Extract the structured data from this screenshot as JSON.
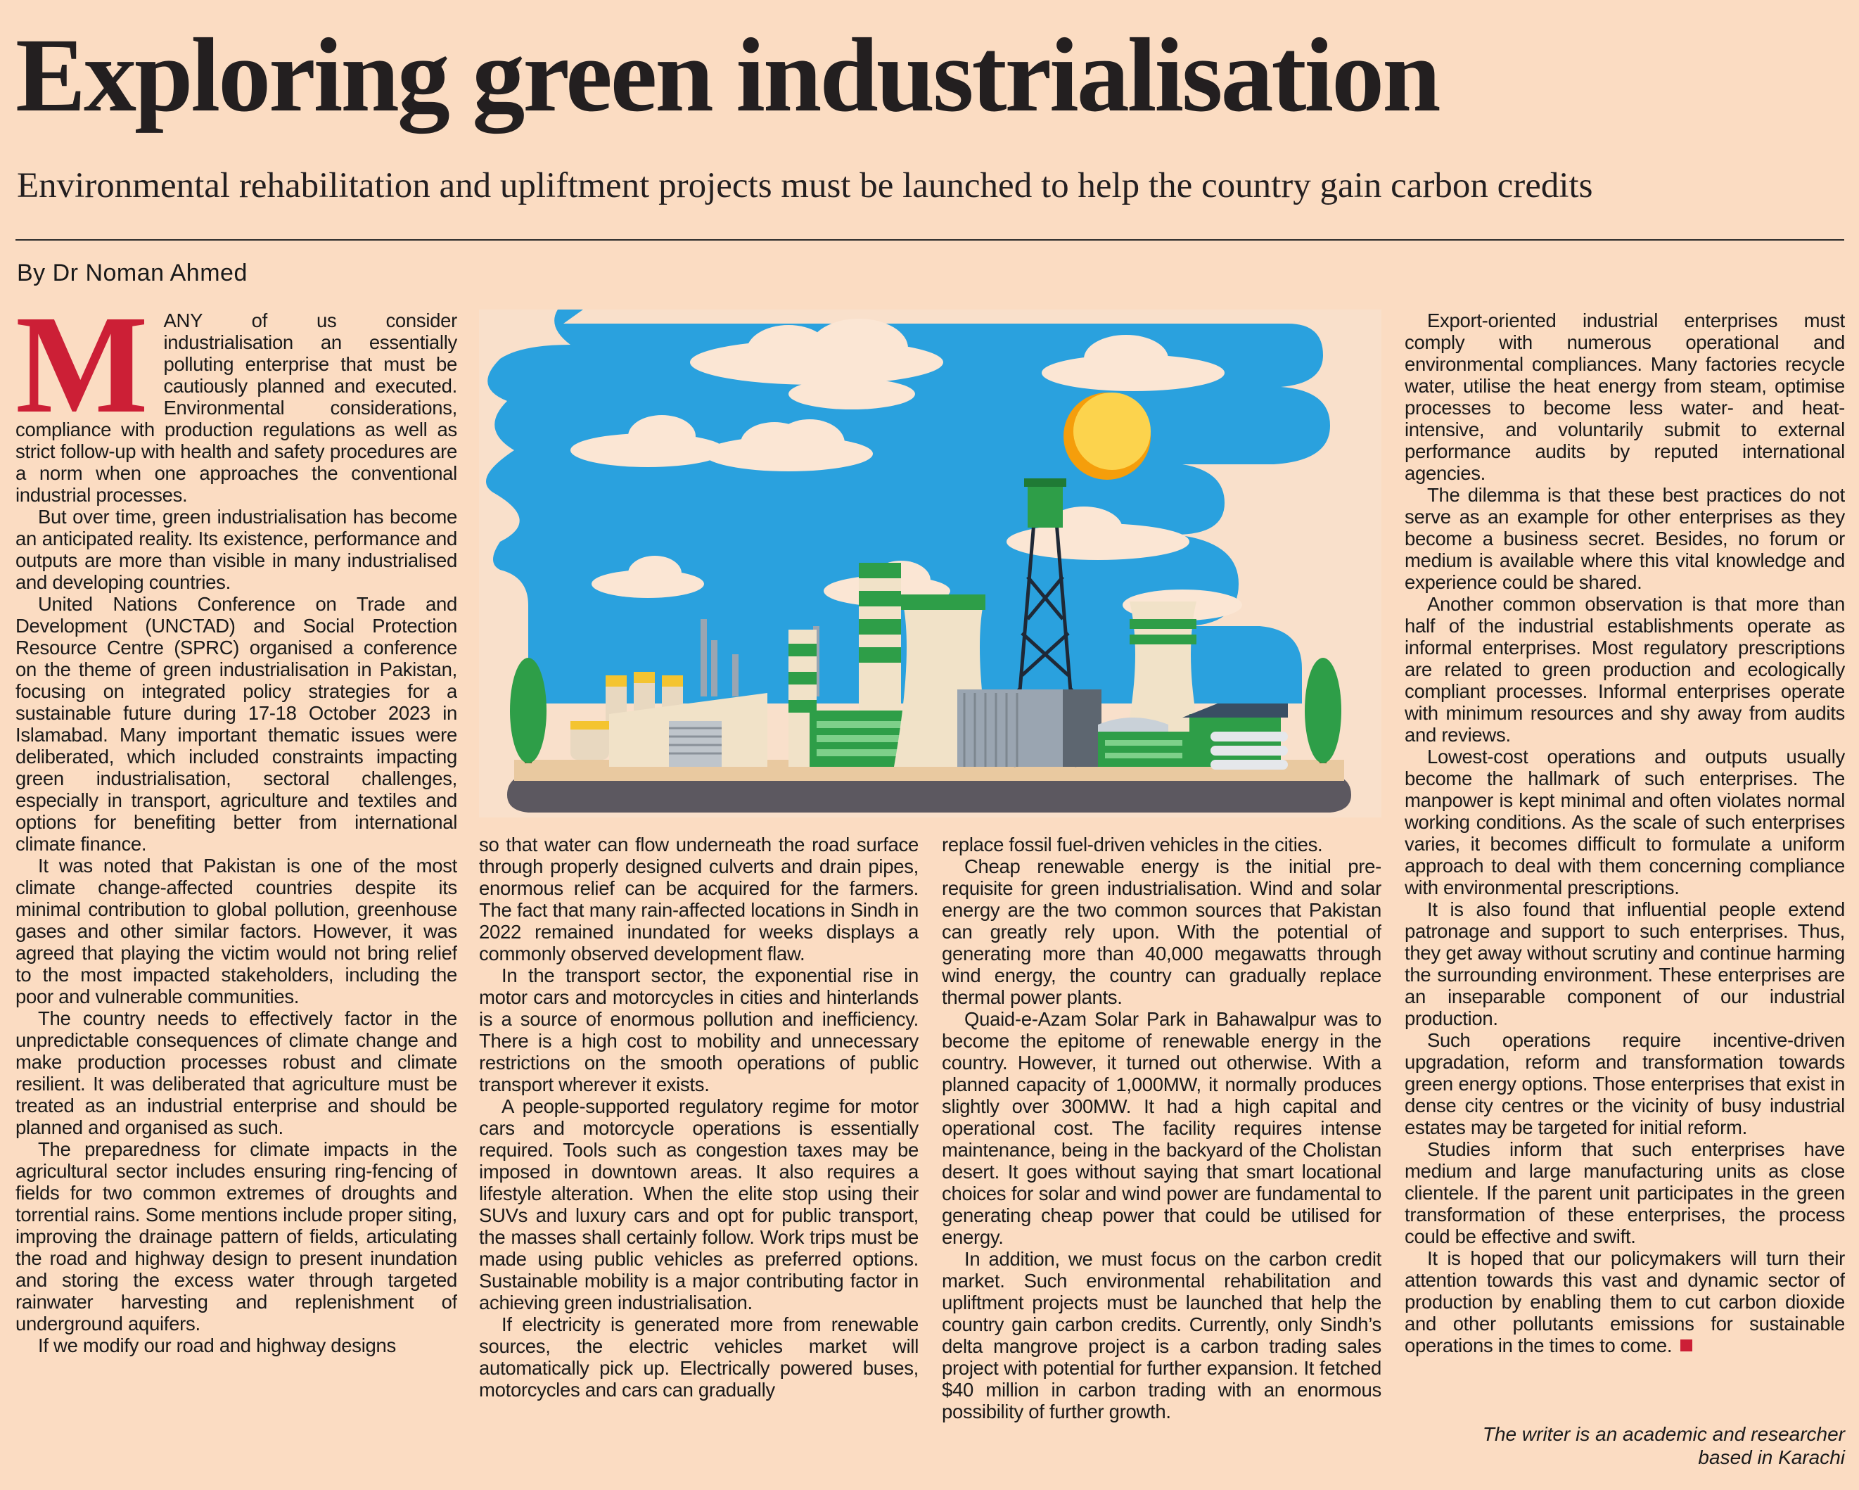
{
  "article": {
    "headline": "Exploring green industrialisation",
    "subheadline": "Environmental rehabilitation and upliftment projects must be launched to help the country gain carbon credits",
    "byline": "By Dr Noman Ahmed",
    "dropcap": "M",
    "writer_note_line1": "The writer is an academic and researcher",
    "writer_note_line2": "based in Karachi"
  },
  "col1": {
    "p1": "ANY of us consider industrialisation an essentially polluting enterprise that must be cautiously planned and executed. Environmental considerations, compliance with production regulations as well as strict follow-up with health and safety procedures are a norm when one approaches the conventional industrial processes.",
    "p2": "But over time, green industrialisation has become an anticipated reality. Its existence, performance and outputs are more than visible in many industrialised and developing countries.",
    "p3": "United Nations Conference on Trade and Development (UNCTAD) and Social Protection Resource Centre (SPRC) organised a conference on the theme of green industrialisation in Pakistan, focusing on integrated policy strategies for a sustainable future during 17-18 October 2023 in Islamabad. Many important thematic issues were deliberated, which included constraints impacting green industrialisation, sectoral challenges, especially in transport, agriculture and textiles and options for benefiting better from international climate finance.",
    "p4": "It was noted that Pakistan is one of the most climate change-affected countries despite its minimal contribution to global pollution, greenhouse gases and other similar factors. However, it was agreed that playing the victim would not bring relief to the most impacted stakeholders, including the poor and vulnerable communities.",
    "p5": "The country needs to effectively factor in the unpredictable consequences of climate change and make production processes robust and climate resilient. It was deliberated that agriculture must be treated as an industrial enterprise and should be planned and organised as such.",
    "p6": "The preparedness for climate impacts in the agricultural sector includes ensuring ring-fencing of fields for two common extremes of droughts and torrential rains. Some mentions include proper siting, improving the drainage pattern of fields, articulating the road and highway design to present inundation and storing the excess water through targeted rainwater harvesting and replenishment of underground aquifers.",
    "p7": "If we modify our road and highway designs"
  },
  "col2": {
    "p1": "so that water can flow underneath the road surface through properly designed culverts and drain pipes, enormous relief can be acquired for the farmers. The fact that many rain-affected locations in Sindh in 2022 remained inundated for weeks displays a commonly observed development flaw.",
    "p2": "In the transport sector, the exponential rise in motor cars and motorcycles in cities and hinterlands is a source of enormous pollution and inefficiency. There is a high cost to mobility and unnecessary restrictions on the smooth operations of public transport wherever it exists.",
    "p3": "A people-supported regulatory regime for motor cars and motorcycle operations is essentially required. Tools such as congestion taxes may be imposed in downtown areas. It also requires a lifestyle alteration. When the elite stop using their SUVs and luxury cars and opt for public transport, the masses shall certainly follow. Work trips must be made using public vehicles as preferred options. Sustainable mobility is a major contributing factor in achieving green industrialisation.",
    "p4": "If electricity is generated more from renewable sources, the electric vehicles market will automatically pick up. Electrically powered buses, motorcycles and cars can gradually"
  },
  "col3": {
    "p1": "replace fossil fuel-driven vehicles in the cities.",
    "p2": "Cheap renewable energy is the initial pre-requisite for green industrialisation. Wind and solar energy are the two common sources that Pakistan can greatly rely upon. With the potential of generating more than 40,000 megawatts through wind energy, the country can gradually replace thermal power plants.",
    "p3": "Quaid-e-Azam Solar Park in Bahawalpur was to become the epitome of renewable energy in the country. However, it turned out otherwise. With a planned capacity of 1,000MW, it normally produces slightly over 300MW. It had a high capital and operational cost. The facility requires intense maintenance, being in the backyard of the Cholistan desert. It goes without saying that smart locational choices for solar and wind power are fundamental to generating cheap power that could be utilised for energy.",
    "p4": "In addition, we must focus on the carbon credit market. Such environmental rehabilitation and upliftment projects must be launched that help the country gain carbon credits. Currently, only Sindh’s delta mangrove project is a carbon trading sales project with potential for further expansion. It fetched $40 million in carbon trading with an enormous possibility of further growth."
  },
  "col4": {
    "p1": "Export-oriented industrial enterprises must comply with numerous operational and environmental compliances. Many factories recycle water, utilise the heat energy from steam, optimise processes to become less water- and heat-intensive, and voluntarily submit to external performance audits by reputed international agencies.",
    "p2": "The dilemma is that these best practices do not serve as an example for other enterprises as they become a business secret. Besides, no forum or medium is available where this vital knowledge and experience could be shared.",
    "p3": "Another common observation is that more than half of the industrial establishments operate as informal enterprises. Most regulatory prescriptions are related to green production and ecologically compliant processes. Informal enterprises operate with minimum resources and shy away from audits and reviews.",
    "p4": "Lowest-cost operations and outputs usually become the hallmark of such enterprises. The manpower is kept minimal and often violates normal working conditions. As the scale of such enterprises varies, it becomes difficult to formulate a uniform approach to deal with them concerning compliance with environmental prescriptions.",
    "p5": "It is also found that influential people extend patronage and support to such enterprises. Thus, they get away without scrutiny and continue harming the surrounding environment. These enterprises are an inseparable component of our industrial production.",
    "p6": "Such operations require incentive-driven upgradation, reform and transformation towards green energy options. Those enterprises that exist in dense city centres or the vicinity of busy industrial estates may be targeted for initial reform.",
    "p7": "Studies inform that such enterprises have medium and large manufacturing units as close clientele. If the parent unit participates in the green transformation of these enterprises, the process could be effective and swift.",
    "p8": "It is hoped that our policymakers will turn their attention towards this vast and dynamic sector of production by enabling them to cut carbon dioxide and other pollutants emissions for sustainable operations in the times to come."
  },
  "colors": {
    "paper": "#fbdcc2",
    "accent_red": "#cc1f36",
    "sky_blue": "#2aa1de",
    "factory_green": "#2e9e48",
    "sun_yellow": "#fbbf24"
  },
  "illustration_icons": [
    "factory-illustration",
    "sun-icon",
    "cloud-icon",
    "tree-icon",
    "smokestack-icon",
    "cooling-tower-icon",
    "pylon-icon"
  ]
}
